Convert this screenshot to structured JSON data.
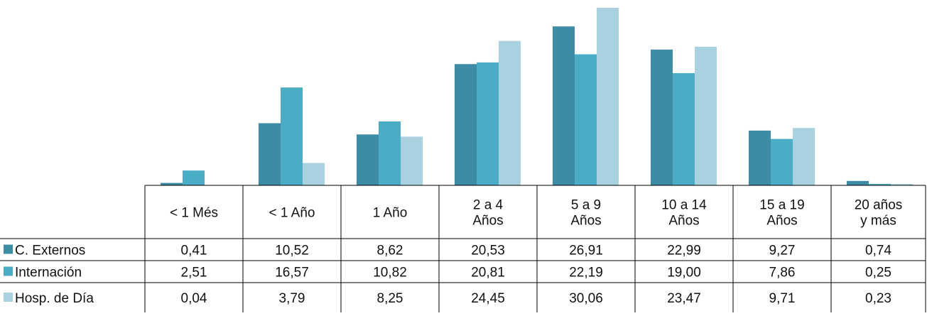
{
  "chart_data": {
    "type": "bar",
    "categories": [
      [
        "< 1 Més"
      ],
      [
        "< 1 Año"
      ],
      [
        "1 Año"
      ],
      [
        "2 a 4",
        "Años"
      ],
      [
        "5 a 9",
        "Años"
      ],
      [
        "10 a 14",
        "Años"
      ],
      [
        "15 a 19",
        "Años"
      ],
      [
        "20 años",
        "y más"
      ]
    ],
    "series": [
      {
        "name": "C. Externos",
        "color": "#3b8ca4",
        "values": [
          0.41,
          10.52,
          8.62,
          20.53,
          26.91,
          22.99,
          9.27,
          0.74
        ],
        "labels": [
          "0,41",
          "10,52",
          "8,62",
          "20,53",
          "26,91",
          "22,99",
          "9,27",
          "0,74"
        ]
      },
      {
        "name": "Internación",
        "color": "#4bacc6",
        "values": [
          2.51,
          16.57,
          10.82,
          20.81,
          22.19,
          19.0,
          7.86,
          0.25
        ],
        "labels": [
          "2,51",
          "16,57",
          "10,82",
          "20,81",
          "22,19",
          "19,00",
          "7,86",
          "0,25"
        ]
      },
      {
        "name": "Hosp. de Día",
        "color": "#a9d1df",
        "values": [
          0.04,
          3.79,
          8.25,
          24.45,
          30.06,
          23.47,
          9.71,
          0.23
        ],
        "labels": [
          "0,04",
          "3,79",
          "8,25",
          "24,45",
          "30,06",
          "23,47",
          "9,71",
          "0,23"
        ]
      }
    ],
    "ylim": [
      0,
      30.06
    ],
    "grid": false,
    "legend": "data-table-left"
  }
}
